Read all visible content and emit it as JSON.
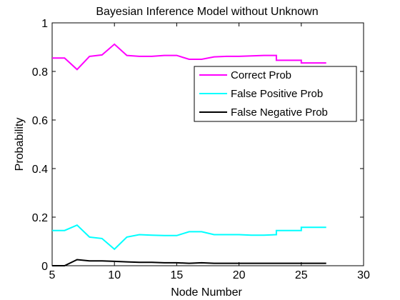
{
  "chart_data": {
    "type": "line",
    "title": "Bayesian Inference Model without Unknown",
    "xlabel": "Node Number",
    "ylabel": "Probability",
    "xlim": [
      5,
      30
    ],
    "ylim": [
      0,
      1
    ],
    "x_ticks": [
      "5",
      "10",
      "15",
      "20",
      "25",
      "30"
    ],
    "y_ticks": [
      "0",
      "0.2",
      "0.4",
      "0.6",
      "0.8",
      "1"
    ],
    "grid": false,
    "legend_position": "top-right",
    "series": [
      {
        "name": "Correct Prob",
        "color": "#ff00ff",
        "points": [
          [
            5,
            0.855
          ],
          [
            6,
            0.855
          ],
          [
            7,
            0.808
          ],
          [
            8,
            0.862
          ],
          [
            9,
            0.868
          ],
          [
            10,
            0.912
          ],
          [
            11,
            0.866
          ],
          [
            12,
            0.862
          ],
          [
            13,
            0.862
          ],
          [
            14,
            0.866
          ],
          [
            15,
            0.866
          ],
          [
            16,
            0.85
          ],
          [
            17,
            0.85
          ],
          [
            18,
            0.86
          ],
          [
            19,
            0.862
          ],
          [
            20,
            0.862
          ],
          [
            21,
            0.864
          ],
          [
            22,
            0.866
          ],
          [
            23,
            0.866
          ],
          [
            23,
            0.846
          ],
          [
            24,
            0.846
          ],
          [
            25,
            0.846
          ],
          [
            25,
            0.835
          ],
          [
            26,
            0.835
          ],
          [
            27,
            0.835
          ]
        ]
      },
      {
        "name": "False Positive Prob",
        "color": "#00ffff",
        "points": [
          [
            5,
            0.145
          ],
          [
            6,
            0.145
          ],
          [
            7,
            0.167
          ],
          [
            8,
            0.118
          ],
          [
            9,
            0.112
          ],
          [
            10,
            0.068
          ],
          [
            11,
            0.118
          ],
          [
            12,
            0.128
          ],
          [
            13,
            0.126
          ],
          [
            14,
            0.124
          ],
          [
            15,
            0.124
          ],
          [
            16,
            0.14
          ],
          [
            17,
            0.14
          ],
          [
            18,
            0.128
          ],
          [
            19,
            0.128
          ],
          [
            20,
            0.128
          ],
          [
            21,
            0.126
          ],
          [
            22,
            0.126
          ],
          [
            23,
            0.128
          ],
          [
            23,
            0.145
          ],
          [
            24,
            0.145
          ],
          [
            25,
            0.145
          ],
          [
            25,
            0.158
          ],
          [
            26,
            0.158
          ],
          [
            27,
            0.158
          ]
        ]
      },
      {
        "name": "False Negative Prob",
        "color": "#000000",
        "points": [
          [
            5,
            0.0
          ],
          [
            6,
            0.0
          ],
          [
            7,
            0.025
          ],
          [
            8,
            0.02
          ],
          [
            9,
            0.02
          ],
          [
            10,
            0.018
          ],
          [
            11,
            0.016
          ],
          [
            12,
            0.014
          ],
          [
            13,
            0.014
          ],
          [
            14,
            0.012
          ],
          [
            15,
            0.012
          ],
          [
            16,
            0.01
          ],
          [
            17,
            0.012
          ],
          [
            18,
            0.01
          ],
          [
            19,
            0.01
          ],
          [
            20,
            0.01
          ],
          [
            21,
            0.01
          ],
          [
            22,
            0.01
          ],
          [
            23,
            0.01
          ],
          [
            24,
            0.01
          ],
          [
            25,
            0.01
          ],
          [
            26,
            0.01
          ],
          [
            27,
            0.01
          ]
        ]
      }
    ]
  }
}
